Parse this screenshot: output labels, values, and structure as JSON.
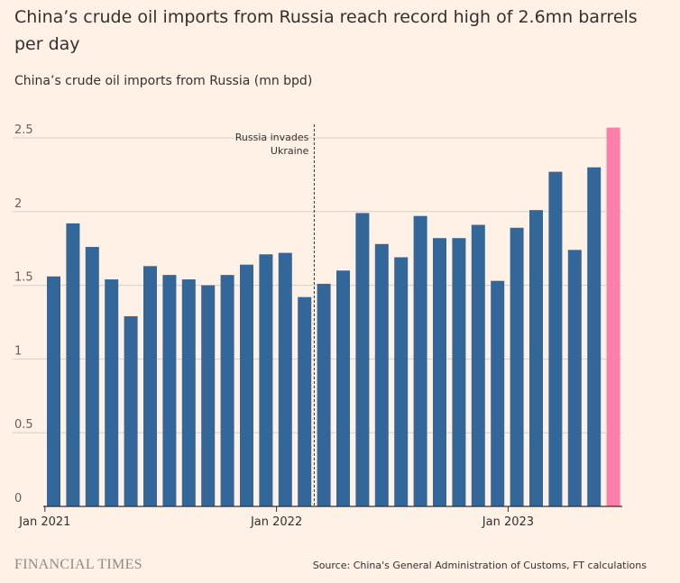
{
  "header": {
    "title": "China’s crude oil imports from Russia reach record high of 2.6mn barrels per day",
    "subtitle": "China’s crude oil imports from Russia (mn bpd)"
  },
  "footer": {
    "brand": "FINANCIAL TIMES",
    "source": "Source: China's General Administration of Customs, FT calculations"
  },
  "colors": {
    "background": "#FFF1E5",
    "bar": "#336699",
    "highlight": "#FF7FAA",
    "grid": "#D8CFC6",
    "axis": "#33302E"
  },
  "chart_data": {
    "type": "bar",
    "title": "",
    "xlabel": "",
    "ylabel": "",
    "ylim": [
      0,
      2.6
    ],
    "yticks": [
      0,
      0.5,
      1,
      1.5,
      2,
      2.5
    ],
    "ytick_labels": [
      "0",
      "0.5",
      "1",
      "1.5",
      "2",
      "2.5"
    ],
    "grid": true,
    "categories": [
      "2021-01",
      "2021-02",
      "2021-03",
      "2021-04",
      "2021-05",
      "2021-06",
      "2021-07",
      "2021-08",
      "2021-09",
      "2021-10",
      "2021-11",
      "2021-12",
      "2022-01",
      "2022-02",
      "2022-03",
      "2022-04",
      "2022-05",
      "2022-06",
      "2022-07",
      "2022-08",
      "2022-09",
      "2022-10",
      "2022-11",
      "2022-12",
      "2023-01",
      "2023-02",
      "2023-03",
      "2023-04",
      "2023-05",
      "2023-06"
    ],
    "values": [
      1.56,
      1.92,
      1.76,
      1.54,
      1.29,
      1.63,
      1.57,
      1.54,
      1.5,
      1.57,
      1.64,
      1.71,
      1.72,
      1.42,
      1.51,
      1.6,
      1.99,
      1.78,
      1.69,
      1.97,
      1.82,
      1.82,
      1.91,
      1.53,
      1.89,
      2.01,
      2.27,
      1.74,
      2.3,
      2.57
    ],
    "highlight_index": 29,
    "xtick_labels": [
      {
        "index": 0,
        "label": "Jan 2021"
      },
      {
        "index": 12,
        "label": "Jan 2022"
      },
      {
        "index": 24,
        "label": "Jan 2023"
      }
    ],
    "annotation": {
      "lines": [
        "Russia invades",
        "Ukraine"
      ],
      "between_indices": [
        13,
        14
      ]
    }
  }
}
